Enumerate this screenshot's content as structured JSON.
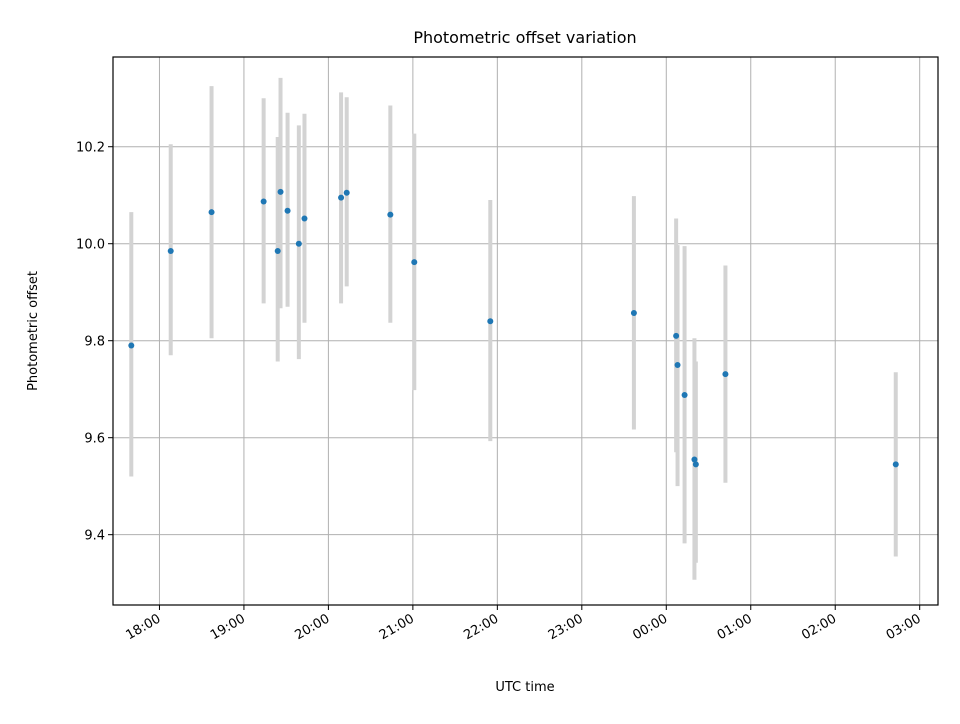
{
  "chart_data": {
    "type": "scatter",
    "title": "Photometric offset variation",
    "xlabel": "UTC time",
    "ylabel": "Photometric offset",
    "x_scale": "time",
    "xlim": [
      "17:27",
      "03:13"
    ],
    "ylim": [
      9.255,
      10.385
    ],
    "grid": true,
    "x_ticks": [
      "18:00",
      "19:00",
      "20:00",
      "21:00",
      "22:00",
      "23:00",
      "00:00",
      "01:00",
      "02:00",
      "03:00"
    ],
    "y_ticks": [
      "9.4",
      "9.6",
      "9.8",
      "10.0",
      "10.2"
    ],
    "y_tick_values": [
      9.4,
      9.6,
      9.8,
      10.0,
      10.2
    ],
    "points": [
      {
        "time": "17:40",
        "y": 9.79,
        "yerr_low": 9.52,
        "yerr_high": 10.065
      },
      {
        "time": "18:08",
        "y": 9.985,
        "yerr_low": 9.77,
        "yerr_high": 10.205
      },
      {
        "time": "18:37",
        "y": 10.065,
        "yerr_low": 9.805,
        "yerr_high": 10.325
      },
      {
        "time": "19:14",
        "y": 10.087,
        "yerr_low": 9.877,
        "yerr_high": 10.3
      },
      {
        "time": "19:24",
        "y": 9.985,
        "yerr_low": 9.757,
        "yerr_high": 10.22
      },
      {
        "time": "19:26",
        "y": 10.107,
        "yerr_low": 9.867,
        "yerr_high": 10.342
      },
      {
        "time": "19:31",
        "y": 10.068,
        "yerr_low": 9.87,
        "yerr_high": 10.27
      },
      {
        "time": "19:39",
        "y": 10.0,
        "yerr_low": 9.762,
        "yerr_high": 10.244
      },
      {
        "time": "19:43",
        "y": 10.052,
        "yerr_low": 9.837,
        "yerr_high": 10.268
      },
      {
        "time": "20:09",
        "y": 10.095,
        "yerr_low": 9.877,
        "yerr_high": 10.312
      },
      {
        "time": "20:13",
        "y": 10.105,
        "yerr_low": 9.912,
        "yerr_high": 10.302
      },
      {
        "time": "20:44",
        "y": 10.06,
        "yerr_low": 9.837,
        "yerr_high": 10.285
      },
      {
        "time": "21:01",
        "y": 9.962,
        "yerr_low": 9.698,
        "yerr_high": 10.227
      },
      {
        "time": "21:55",
        "y": 9.84,
        "yerr_low": 9.593,
        "yerr_high": 10.09
      },
      {
        "time": "23:37",
        "y": 9.857,
        "yerr_low": 9.617,
        "yerr_high": 10.098
      },
      {
        "time": "00:07",
        "y": 9.81,
        "yerr_low": 9.57,
        "yerr_high": 10.052
      },
      {
        "time": "00:08",
        "y": 9.75,
        "yerr_low": 9.5,
        "yerr_high": 9.997
      },
      {
        "time": "00:13",
        "y": 9.688,
        "yerr_low": 9.382,
        "yerr_high": 9.995
      },
      {
        "time": "00:20",
        "y": 9.555,
        "yerr_low": 9.307,
        "yerr_high": 9.805
      },
      {
        "time": "00:21",
        "y": 9.545,
        "yerr_low": 9.342,
        "yerr_high": 9.757
      },
      {
        "time": "00:42",
        "y": 9.731,
        "yerr_low": 9.507,
        "yerr_high": 9.955
      },
      {
        "time": "02:43",
        "y": 9.545,
        "yerr_low": 9.355,
        "yerr_high": 9.735
      }
    ],
    "colors": {
      "marker": "#1f77b4",
      "errorbar": "#d3d3d3",
      "grid": "#b0b0b0",
      "axes": "#000000"
    }
  }
}
